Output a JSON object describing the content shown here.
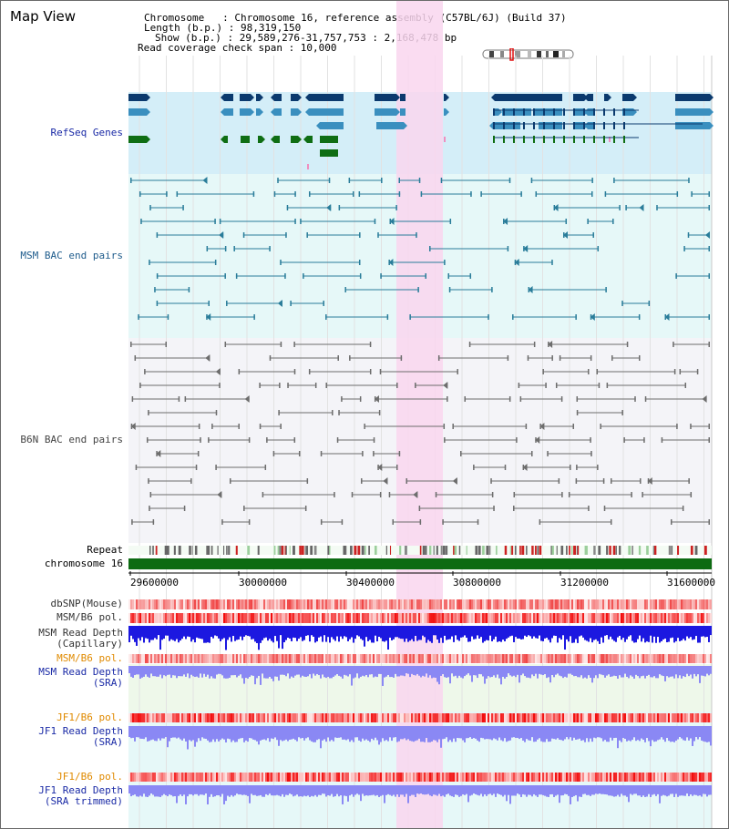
{
  "header": {
    "title": "Map View",
    "info_lines": [
      "Chromosome   : Chromosome 16, reference assembly (C57BL/6J) (Build 37)",
      "Length (b.p.) : 98,319,150",
      "Show (b.p.) : 29,589,276-31,757,753 : 2,168,478 bp",
      "Read coverage check span : 10,000"
    ]
  },
  "tracks": {
    "refseq": "RefSeq Genes",
    "msm_bac": "MSM BAC end pairs",
    "b6n_bac": "B6N BAC end pairs",
    "repeat": "Repeat",
    "chromosome": "chromosome 16",
    "dbsnp": "dbSNP(Mouse)",
    "msm_b6_pol_1": "MSM/B6 pol.",
    "msm_read_depth_cap": "MSM Read Depth\n(Capillary)",
    "msm_b6_pol_2": "MSM/B6 pol.",
    "msm_read_depth_sra": "MSM Read Depth\n(SRA)",
    "jf1_b6_pol_1": "JF1/B6 pol.",
    "jf1_read_depth_sra": "JF1 Read Depth\n(SRA)",
    "jf1_b6_pol_2": "JF1/B6 pol.",
    "jf1_read_depth_trim": "JF1 Read Depth\n(SRA trimmed)"
  },
  "axis": {
    "ticks": [
      "29600000",
      "30000000",
      "30400000",
      "30800000",
      "31200000",
      "31600000"
    ]
  },
  "colors": {
    "refseq_bg": "#d4eef8",
    "msm_bg": "#e6f8f8",
    "b6n_bg": "#f4f4f8",
    "highlight": "#f9d6ee",
    "gene_dark": "#0b3a6e",
    "gene_mid": "#3a8fbf",
    "gene_green": "#0f6e14",
    "msm_line": "#2a7d9a",
    "b6n_line": "#6d6d6d",
    "chromosome_bar": "#0d6b12",
    "label_blue": "#1a2aa6",
    "label_orange": "#e08a00",
    "label_gray": "#333333",
    "depth_blue": "#1c18e0",
    "depth_light": "#8a88f4"
  }
}
